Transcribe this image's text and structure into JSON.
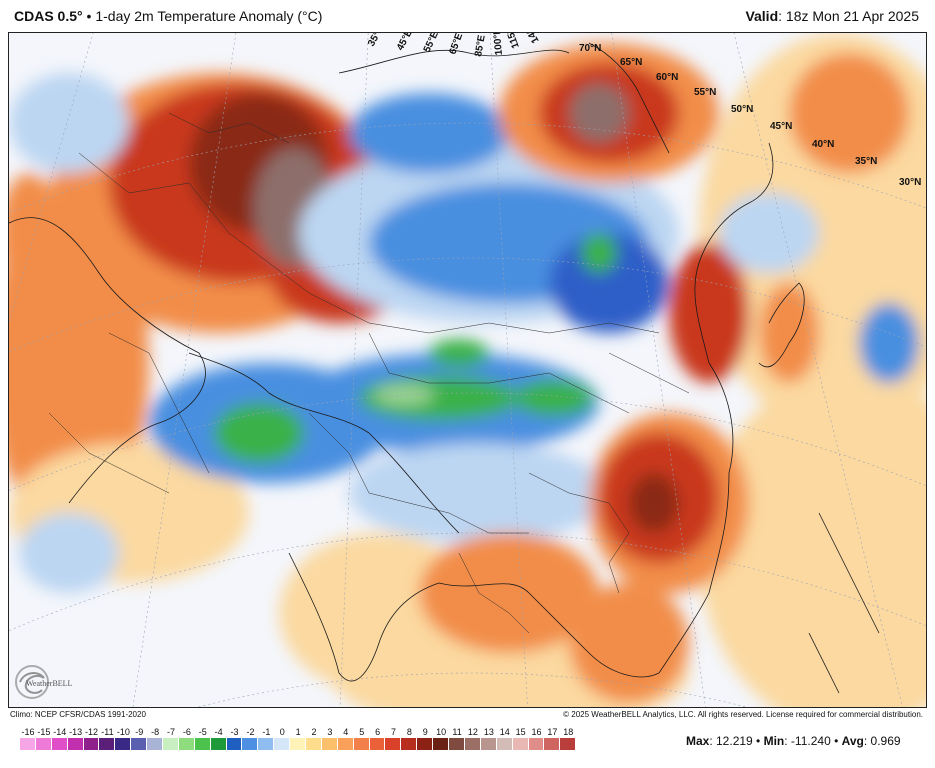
{
  "header": {
    "model": "CDAS 0.5",
    "degree": "°",
    "bullet": "•",
    "product": "1-day 2m Temperature Anomaly (°C)",
    "valid_label": "Valid",
    "valid_value": ": 18z Mon 21 Apr 2025"
  },
  "map": {
    "lat_labels": [
      "70°N",
      "65°N",
      "60°N",
      "55°N",
      "50°N",
      "45°N",
      "40°N",
      "35°N",
      "30°N"
    ],
    "lon_labels": [
      "35°E",
      "45°E",
      "55°E",
      "65°E",
      "85°E",
      "100°E",
      "115°E",
      "140°E"
    ],
    "colors": {
      "ocean_neutral": "#f4f6fb",
      "warm_light": "#fbd9a0",
      "warm": "#f28d4a",
      "hot": "#c9391f",
      "very_hot": "#8a2a18",
      "extreme": "#8d6e6a",
      "cool_light": "#bcd6f2",
      "cool": "#4a8fe0",
      "cold": "#2f5fc8",
      "very_cold": "#3ab14a",
      "extreme_cold": "#9fd49a"
    }
  },
  "logo": {
    "text": "WeatherBELL",
    "icon": "weatherbell-swirl-icon"
  },
  "footer": {
    "climo": "Climo: NCEP CFSR/CDAS 1991-2020",
    "copyright": "© 2025 WeatherBELL Analytics, LLC. All rights reserved. License required for commercial distribution.",
    "colorbar": [
      {
        "label": "-16",
        "color": "#f6a6e6"
      },
      {
        "label": "-15",
        "color": "#ee7ad8"
      },
      {
        "label": "-14",
        "color": "#e04ec8"
      },
      {
        "label": "-13",
        "color": "#c22fae"
      },
      {
        "label": "-12",
        "color": "#8f1f8a"
      },
      {
        "label": "-11",
        "color": "#5b1f7a"
      },
      {
        "label": "-10",
        "color": "#3a2a86"
      },
      {
        "label": "-9",
        "color": "#5a5fb0"
      },
      {
        "label": "-8",
        "color": "#a9b3d6"
      },
      {
        "label": "-7",
        "color": "#c9eec1"
      },
      {
        "label": "-6",
        "color": "#8fdc7f"
      },
      {
        "label": "-5",
        "color": "#4cc14b"
      },
      {
        "label": "-4",
        "color": "#1e9a3a"
      },
      {
        "label": "-3",
        "color": "#1f5fc0"
      },
      {
        "label": "-2",
        "color": "#4d8fe2"
      },
      {
        "label": "-1",
        "color": "#8fbdf0"
      },
      {
        "label": "0",
        "color": "#d4e6f8"
      },
      {
        "label": "1",
        "color": "#fff3b8"
      },
      {
        "label": "2",
        "color": "#fddc8c"
      },
      {
        "label": "3",
        "color": "#fcbf6c"
      },
      {
        "label": "4",
        "color": "#f9a05a"
      },
      {
        "label": "5",
        "color": "#f3804a"
      },
      {
        "label": "6",
        "color": "#ea6038"
      },
      {
        "label": "7",
        "color": "#d9412a"
      },
      {
        "label": "8",
        "color": "#b72e1e"
      },
      {
        "label": "9",
        "color": "#8c2216"
      },
      {
        "label": "10",
        "color": "#6a2214"
      },
      {
        "label": "11",
        "color": "#7f4a40"
      },
      {
        "label": "12",
        "color": "#9c6f66"
      },
      {
        "label": "13",
        "color": "#b8958e"
      },
      {
        "label": "14",
        "color": "#d3bbb6"
      },
      {
        "label": "15",
        "color": "#e9b8b4"
      },
      {
        "label": "16",
        "color": "#de8d88"
      },
      {
        "label": "17",
        "color": "#cf6560"
      },
      {
        "label": "18",
        "color": "#b93d3a"
      }
    ],
    "stats": {
      "max_label": "Max",
      "max_value": ": 12.219",
      "min_label": "Min",
      "min_value": ": -11.240",
      "avg_label": "Avg",
      "avg_value": ": 0.969",
      "sep": " • "
    }
  }
}
